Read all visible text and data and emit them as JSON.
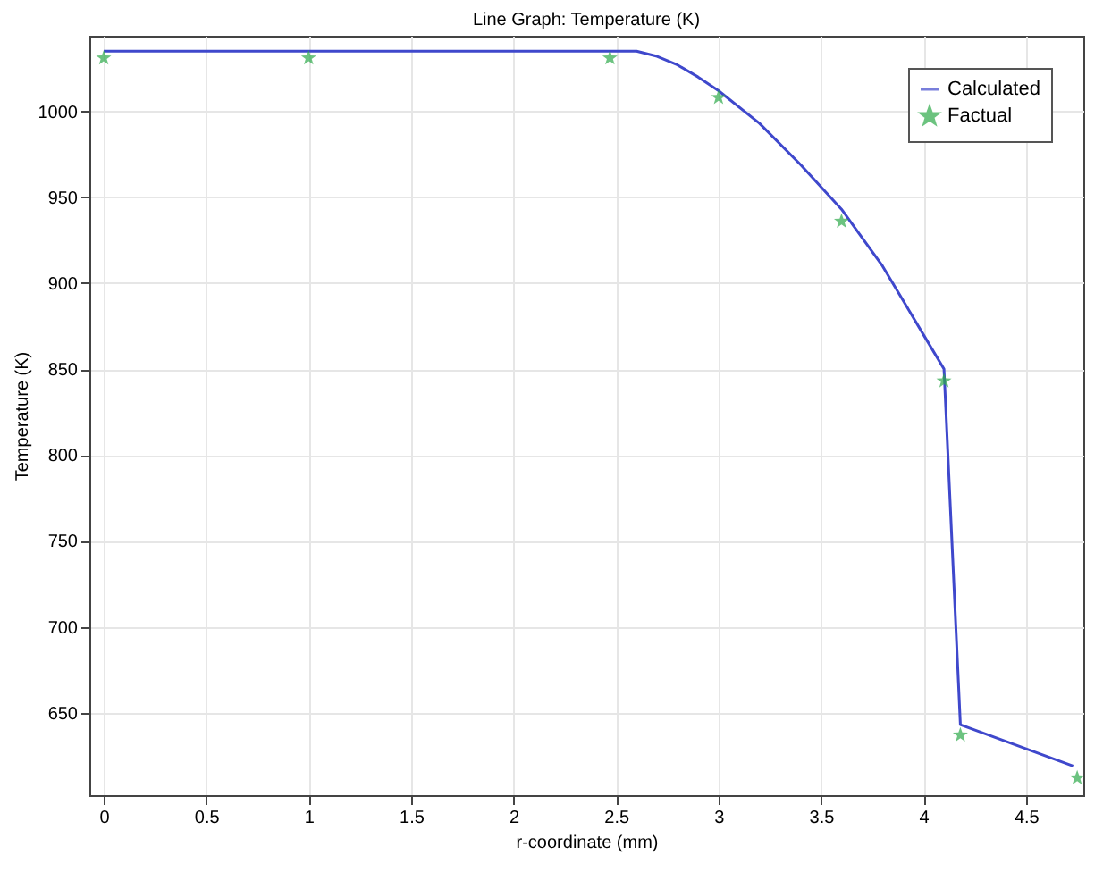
{
  "chart_data": {
    "type": "line",
    "title": "Line Graph: Temperature (K)",
    "xlabel": "r-coordinate (mm)",
    "ylabel": "Temperature (K)",
    "xlim": [
      -0.07,
      4.78
    ],
    "ylim": [
      602,
      1044
    ],
    "xticks": [
      0,
      0.5,
      1,
      1.5,
      2,
      2.5,
      3,
      3.5,
      4,
      4.5
    ],
    "yticks": [
      650,
      700,
      750,
      800,
      850,
      900,
      950,
      1000
    ],
    "grid": true,
    "legend": "top right",
    "series": [
      {
        "name": "Calculated",
        "color": "#3f48cc",
        "marker": "none",
        "line_style": "solid",
        "x": [
          0,
          2.5,
          2.6,
          2.7,
          2.8,
          2.9,
          3.0,
          3.2,
          3.4,
          3.6,
          3.8,
          4.0,
          4.1,
          4.18,
          4.73
        ],
        "values": [
          1035,
          1035,
          1035,
          1032,
          1027,
          1020,
          1012,
          993,
          969,
          943,
          910,
          870,
          850,
          643,
          619
        ]
      },
      {
        "name": "Factual",
        "type": "scatter",
        "color": "#2eaa4a",
        "marker": "star",
        "x": [
          0,
          1,
          2.47,
          3,
          3.6,
          4.1,
          4.18,
          4.75
        ],
        "values": [
          1031,
          1031,
          1031,
          1008,
          936,
          843,
          637,
          612
        ]
      }
    ]
  }
}
